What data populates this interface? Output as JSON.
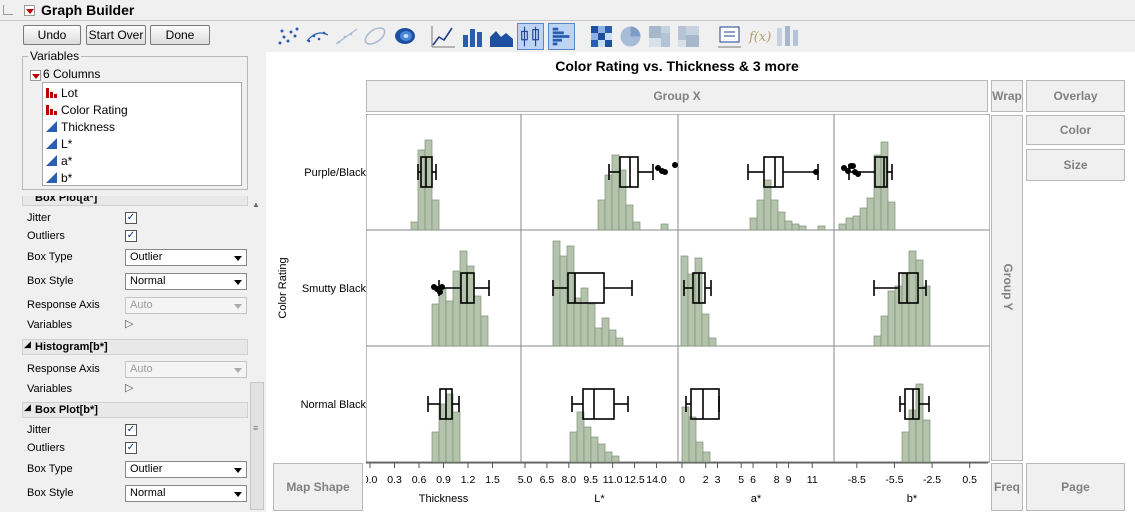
{
  "window": {
    "title": "Graph Builder"
  },
  "toolbar": {
    "undo": "Undo",
    "start_over": "Start Over",
    "done": "Done"
  },
  "variables": {
    "title": "Variables",
    "columns_label": "6 Columns",
    "items": [
      {
        "name": "Lot",
        "icon": "nominal-icon"
      },
      {
        "name": "Color Rating",
        "icon": "nominal-icon"
      },
      {
        "name": "Thickness",
        "icon": "continuous-icon"
      },
      {
        "name": "L*",
        "icon": "continuous-icon"
      },
      {
        "name": "a*",
        "icon": "continuous-icon"
      },
      {
        "name": "b*",
        "icon": "continuous-icon"
      }
    ]
  },
  "props": {
    "section1_title": "Box Plot[a*]",
    "jitter": "Jitter",
    "outliers": "Outliers",
    "box_type_label": "Box Type",
    "box_type_value": "Outlier",
    "box_style_label": "Box Style",
    "box_style_value": "Normal",
    "response_axis_label": "Response Axis",
    "response_axis_value": "Auto",
    "variables_label": "Variables",
    "section2_title": "Histogram[b*]",
    "section3_title": "Box Plot[b*]",
    "checked": true
  },
  "graph": {
    "title": "Color Rating vs. Thickness & 3 more",
    "group_x": "Group X",
    "group_y": "Group Y",
    "wrap": "Wrap",
    "overlay": "Overlay",
    "color": "Color",
    "size": "Size",
    "map_shape": "Map Shape",
    "freq": "Freq",
    "page": "Page",
    "y_axis_title": "Color Rating",
    "rows": [
      "Purple/Black",
      "Smutty Black",
      "Normal Black"
    ],
    "x_axes": [
      {
        "title": "Thickness",
        "ticks": [
          "0.0",
          "0.3",
          "0.6",
          "0.9",
          "1.2",
          "1.5"
        ]
      },
      {
        "title": "L*",
        "ticks": [
          "5.0",
          "6.5",
          "8.0",
          "9.5",
          "11.0",
          "12.5",
          "14.0"
        ]
      },
      {
        "title": "a*",
        "ticks": [
          "0",
          "2",
          "3",
          "5",
          "6",
          "8",
          "9",
          "11"
        ]
      },
      {
        "title": "b*",
        "ticks": [
          "-8.5",
          "-5.5",
          "-2.5",
          "0.5"
        ]
      }
    ]
  },
  "colors": {
    "histogram_fill": "#b4c4ac",
    "histogram_stroke": "#7f8f78",
    "accent_red": "#c00000",
    "selected_icon": "#bcd3f3"
  }
}
